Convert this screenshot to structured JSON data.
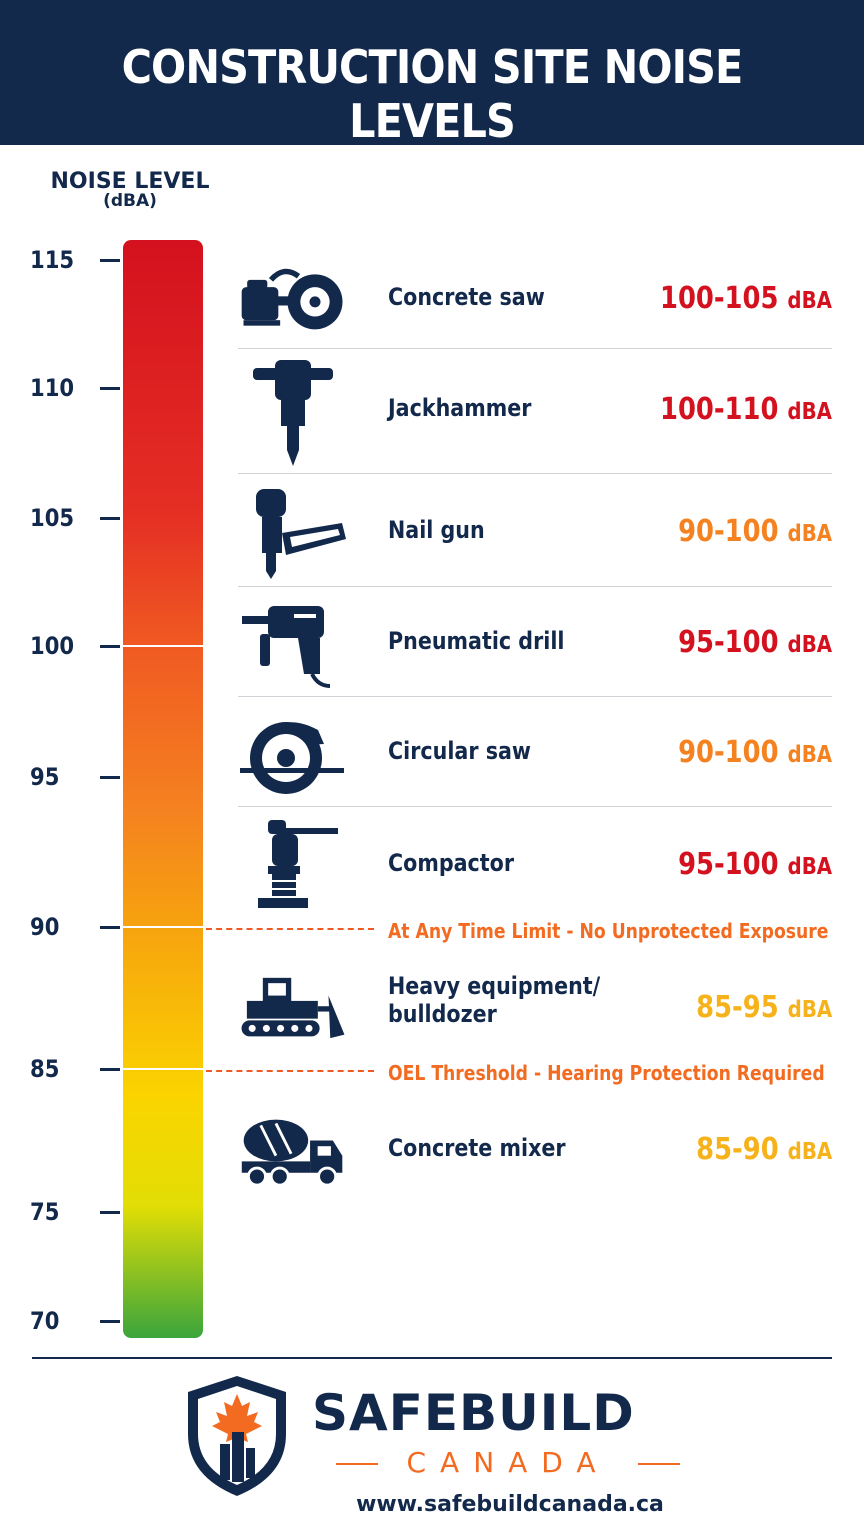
{
  "header": {
    "title": "CONSTRUCTION SITE NOISE LEVELS"
  },
  "axis": {
    "title": "NOISE LEVEL",
    "unit": "(dBA)",
    "ticks": [
      "115",
      "110",
      "105",
      "100",
      "95",
      "90",
      "85",
      "75",
      "70"
    ]
  },
  "colors": {
    "navy": "#13294b",
    "red": "#d4111e",
    "orange": "#f58220",
    "yellow": "#f6b21b",
    "green": "#3aa53c"
  },
  "items": [
    {
      "name": "Concrete saw",
      "range": "100-105",
      "unit": "dBA",
      "icon": "concrete-saw-icon",
      "color": "#d4111e"
    },
    {
      "name": "Jackhammer",
      "range": "100-110",
      "unit": "dBA",
      "icon": "jackhammer-icon",
      "color": "#d4111e"
    },
    {
      "name": "Nail gun",
      "range": "90-100",
      "unit": "dBA",
      "icon": "nail-gun-icon",
      "color": "#f58220"
    },
    {
      "name": "Pneumatic drill",
      "range": "95-100",
      "unit": "dBA",
      "icon": "pneumatic-drill-icon",
      "color": "#d4111e"
    },
    {
      "name": "Circular saw",
      "range": "90-100",
      "unit": "dBA",
      "icon": "circular-saw-icon",
      "color": "#f58220"
    },
    {
      "name": "Compactor",
      "range": "95-100",
      "unit": "dBA",
      "icon": "compactor-icon",
      "color": "#d4111e"
    },
    {
      "name_line1": "Heavy equipment/",
      "name_line2": "bulldozer",
      "range": "85-95",
      "unit": "dBA",
      "icon": "bulldozer-icon",
      "color": "#f6b21b"
    },
    {
      "name": "Concrete mixer",
      "range": "85-90",
      "unit": "dBA",
      "icon": "concrete-mixer-icon",
      "color": "#f6b21b"
    }
  ],
  "thresholds": [
    {
      "level": "90",
      "label": "At Any Time Limit - No Unprotected Exposure"
    },
    {
      "level": "85",
      "label": "OEL Threshold - Hearing Protection Required"
    }
  ],
  "footer": {
    "brand": "SAFEBUILD",
    "sub": "CANADA",
    "url": "www.safebuildcanada.ca"
  }
}
